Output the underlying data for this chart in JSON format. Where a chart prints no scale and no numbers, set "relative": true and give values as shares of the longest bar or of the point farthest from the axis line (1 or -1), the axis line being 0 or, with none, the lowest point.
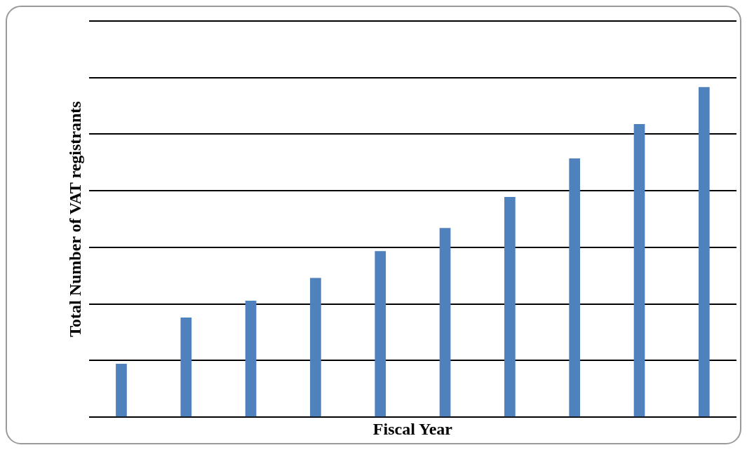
{
  "chart_data": {
    "type": "bar",
    "xlabel": "Fiscal Year",
    "ylabel": "Total Number of VAT registrants",
    "categories": [
      null,
      null,
      null,
      null,
      null,
      null,
      null,
      null,
      null,
      null
    ],
    "values": [
      0.162,
      0.302,
      0.353,
      0.422,
      0.503,
      0.573,
      0.667,
      0.784,
      0.888,
      1
    ],
    "color": "#4f81bd",
    "relative": true,
    "grid": "y"
  }
}
